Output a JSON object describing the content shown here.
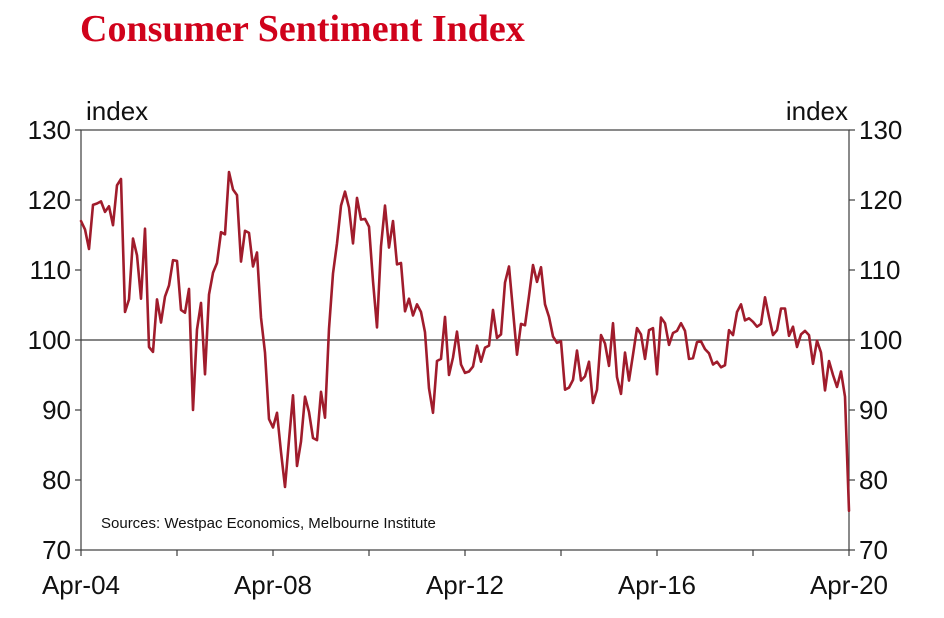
{
  "title": "Consumer Sentiment Index",
  "colors": {
    "title": "#d0021b",
    "series": "#a01c2c",
    "axis": "#3c3c3c",
    "text": "#111111"
  },
  "chart_data": {
    "type": "line",
    "title": "Consumer Sentiment Index",
    "ylabel_left": "index",
    "ylabel_right": "index",
    "ylim": [
      70,
      130
    ],
    "yticks": [
      70,
      80,
      90,
      100,
      110,
      120,
      130
    ],
    "ytick_labels": [
      "70",
      "80",
      "90",
      "100",
      "110",
      "120",
      "130"
    ],
    "x_start": "Apr-04",
    "x_end": "Apr-20",
    "xtick_labels": [
      "Apr-04",
      "Apr-08",
      "Apr-12",
      "Apr-16",
      "Apr-20"
    ],
    "reference_line": 100,
    "grid": false,
    "source_note": "Sources: Westpac Economics, Melbourne Institute",
    "series": [
      {
        "values": [
          117,
          115.8,
          113,
          119.3,
          119.5,
          119.8,
          118.3,
          119.1,
          116.4,
          122.1,
          123,
          104,
          105.8,
          114.5,
          112.1,
          105.9,
          115.9,
          99,
          98.3,
          105.8,
          102.5,
          106.2,
          107.8,
          111.4,
          111.3,
          104.3,
          103.9,
          107.3,
          90,
          101.5,
          105.3,
          95.1,
          106.5,
          109.6,
          111,
          115.4,
          115.1,
          124,
          121.5,
          120.7,
          111.2,
          115.6,
          115.3,
          110.5,
          112.5,
          103.2,
          98.2,
          88.7,
          87.5,
          89.6,
          84,
          79,
          85.7,
          92.1,
          82,
          85.5,
          91.9,
          89.7,
          86,
          85.7,
          92.6,
          88.9,
          101.6,
          109.5,
          113.8,
          119.2,
          121.2,
          118.9,
          113.8,
          120.3,
          117.2,
          117.3,
          116.2,
          108.4,
          101.8,
          113.4,
          119.2,
          113.2,
          117,
          110.8,
          111,
          104.1,
          105.9,
          103.5,
          105.1,
          104,
          101.1,
          93.1,
          89.6,
          97,
          97.3,
          103.3,
          95,
          97.5,
          101.2,
          96.5,
          95.3,
          95.5,
          96.2,
          99.2,
          96.9,
          98.9,
          99.2,
          104.3,
          100.3,
          100.8,
          108.2,
          110.5,
          104.2,
          97.9,
          102.3,
          102.1,
          106.3,
          110.7,
          108.3,
          110.4,
          105.1,
          103.3,
          100.5,
          99.6,
          99.8,
          92.9,
          93.2,
          94.3,
          98.5,
          94.2,
          94.8,
          96.9,
          91,
          92.9,
          100.7,
          99.5,
          96.3,
          102.4,
          94.7,
          92.3,
          98.2,
          94.2,
          97.9,
          101.7,
          100.8,
          97.3,
          101.4,
          101.7,
          95.1,
          103.2,
          102.4,
          99.3,
          101,
          101.3,
          102.4,
          101.3,
          97.3,
          97.4,
          99.7,
          99.8,
          98.7,
          98.1,
          96.5,
          96.9,
          96.1,
          96.4,
          101.4,
          100.7,
          104,
          105.1,
          102.8,
          103.1,
          102.6,
          101.9,
          102.3,
          106.1,
          103.3,
          100.7,
          101.4,
          104.5,
          104.5,
          100.6,
          101.9,
          99,
          100.8,
          101.3,
          100.7,
          96.6,
          99.9,
          98.2,
          92.8,
          97,
          95,
          93.3,
          95.5,
          91.9,
          75.6
        ]
      }
    ]
  }
}
